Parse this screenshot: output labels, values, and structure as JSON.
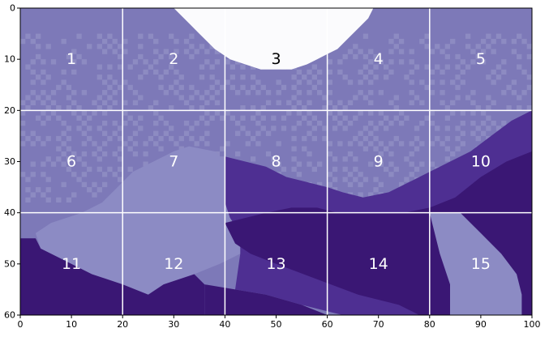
{
  "chart_data": {
    "type": "heatmap",
    "title": "",
    "xlabel": "",
    "ylabel": "",
    "xlim": [
      0,
      100
    ],
    "ylim": [
      60,
      0
    ],
    "x_ticks": [
      0,
      10,
      20,
      30,
      40,
      50,
      60,
      70,
      80,
      90,
      100
    ],
    "y_ticks": [
      0,
      10,
      20,
      30,
      40,
      50,
      60
    ],
    "grid": {
      "x": [
        20,
        40,
        60,
        80
      ],
      "y": [
        20,
        40
      ],
      "color": "#ffffff"
    },
    "colors": {
      "white": "#fbfbfd",
      "light": "#7d79b8",
      "medium": "#8c8bc4",
      "dark": "#4e2f92",
      "darkest": "#3a1774",
      "speckle": "#9b9acb"
    },
    "tile_labels": [
      {
        "text": "1",
        "x": 10,
        "y": 10,
        "color": "#ffffff"
      },
      {
        "text": "2",
        "x": 30,
        "y": 10,
        "color": "#ffffff"
      },
      {
        "text": "3",
        "x": 50,
        "y": 10,
        "color": "#000000"
      },
      {
        "text": "4",
        "x": 70,
        "y": 10,
        "color": "#ffffff"
      },
      {
        "text": "5",
        "x": 90,
        "y": 10,
        "color": "#ffffff"
      },
      {
        "text": "6",
        "x": 10,
        "y": 30,
        "color": "#ffffff"
      },
      {
        "text": "7",
        "x": 30,
        "y": 30,
        "color": "#ffffff"
      },
      {
        "text": "8",
        "x": 50,
        "y": 30,
        "color": "#ffffff"
      },
      {
        "text": "9",
        "x": 70,
        "y": 30,
        "color": "#ffffff"
      },
      {
        "text": "10",
        "x": 90,
        "y": 30,
        "color": "#ffffff"
      },
      {
        "text": "11",
        "x": 10,
        "y": 50,
        "color": "#ffffff"
      },
      {
        "text": "12",
        "x": 30,
        "y": 50,
        "color": "#ffffff"
      },
      {
        "text": "13",
        "x": 50,
        "y": 50,
        "color": "#ffffff"
      },
      {
        "text": "14",
        "x": 70,
        "y": 50,
        "color": "#ffffff"
      },
      {
        "text": "15",
        "x": 90,
        "y": 50,
        "color": "#ffffff"
      }
    ],
    "regions": [
      {
        "name": "white-cap",
        "color": "white",
        "points": [
          [
            30,
            0
          ],
          [
            69,
            0
          ],
          [
            68,
            2
          ],
          [
            66,
            4
          ],
          [
            64,
            6
          ],
          [
            62,
            8
          ],
          [
            60,
            9
          ],
          [
            58,
            10
          ],
          [
            56,
            11
          ],
          [
            53,
            12
          ],
          [
            47,
            12
          ],
          [
            44,
            11
          ],
          [
            41,
            10
          ],
          [
            38,
            8
          ],
          [
            35,
            5
          ],
          [
            33,
            3
          ]
        ]
      },
      {
        "name": "medium-patch",
        "color": "medium",
        "points": [
          [
            33,
            27
          ],
          [
            38,
            28
          ],
          [
            40,
            30
          ],
          [
            40,
            38
          ],
          [
            41,
            41
          ],
          [
            43,
            44
          ],
          [
            43,
            48
          ],
          [
            39,
            50
          ],
          [
            34,
            52
          ],
          [
            30,
            54
          ],
          [
            25,
            56
          ],
          [
            20,
            54
          ],
          [
            14,
            52
          ],
          [
            8,
            49
          ],
          [
            4,
            47
          ],
          [
            3,
            44
          ],
          [
            6,
            42
          ],
          [
            12,
            40
          ],
          [
            16,
            38
          ],
          [
            19,
            35
          ],
          [
            22,
            32
          ],
          [
            26,
            30
          ],
          [
            30,
            28
          ]
        ]
      },
      {
        "name": "dark-middle",
        "color": "dark",
        "points": [
          [
            40,
            29
          ],
          [
            44,
            30
          ],
          [
            48,
            31
          ],
          [
            52,
            33
          ],
          [
            56,
            34
          ],
          [
            60,
            35
          ],
          [
            63,
            36
          ],
          [
            67,
            37
          ],
          [
            72,
            36
          ],
          [
            76,
            34
          ],
          [
            80,
            32
          ],
          [
            84,
            30
          ],
          [
            88,
            28
          ],
          [
            92,
            25
          ],
          [
            96,
            22
          ],
          [
            100,
            20
          ],
          [
            100,
            60
          ],
          [
            63,
            60
          ],
          [
            55,
            58
          ],
          [
            48,
            56
          ],
          [
            42,
            55
          ],
          [
            43,
            48
          ],
          [
            43,
            44
          ],
          [
            41,
            41
          ],
          [
            40,
            38
          ]
        ]
      },
      {
        "name": "darkest-bottom-left",
        "color": "darkest",
        "points": [
          [
            0,
            45
          ],
          [
            3,
            45
          ],
          [
            4,
            47
          ],
          [
            8,
            49
          ],
          [
            14,
            52
          ],
          [
            20,
            54
          ],
          [
            25,
            56
          ],
          [
            28,
            54
          ],
          [
            34,
            52
          ],
          [
            36,
            54
          ],
          [
            36,
            60
          ],
          [
            0,
            60
          ]
        ]
      },
      {
        "name": "darkest-bottom-middle",
        "color": "darkest",
        "points": [
          [
            36,
            60
          ],
          [
            36,
            54
          ],
          [
            42,
            55
          ],
          [
            48,
            56
          ],
          [
            55,
            58
          ],
          [
            60,
            60
          ]
        ]
      },
      {
        "name": "darkest-right",
        "color": "darkest",
        "points": [
          [
            40,
            42
          ],
          [
            44,
            41
          ],
          [
            48,
            40
          ],
          [
            53,
            39
          ],
          [
            58,
            39
          ],
          [
            62,
            40
          ],
          [
            68,
            40
          ],
          [
            75,
            40
          ],
          [
            80,
            39
          ],
          [
            85,
            37
          ],
          [
            90,
            33
          ],
          [
            95,
            30
          ],
          [
            100,
            28
          ],
          [
            100,
            60
          ],
          [
            78,
            60
          ],
          [
            74,
            58
          ],
          [
            66,
            56
          ],
          [
            58,
            53
          ],
          [
            50,
            50
          ],
          [
            45,
            48
          ],
          [
            42,
            46
          ]
        ]
      },
      {
        "name": "medium-right-strip",
        "color": "medium",
        "points": [
          [
            80,
            40
          ],
          [
            86,
            40
          ],
          [
            90,
            44
          ],
          [
            94,
            48
          ],
          [
            97,
            52
          ],
          [
            98,
            56
          ],
          [
            98,
            60
          ],
          [
            84,
            60
          ],
          [
            84,
            54
          ],
          [
            82,
            48
          ]
        ]
      }
    ],
    "speckle_rows": [
      {
        "y0": 5,
        "y1": 20,
        "x0": 0,
        "x1": 100
      },
      {
        "y0": 20,
        "y1": 38,
        "x0": 0,
        "x1": 96
      }
    ]
  }
}
